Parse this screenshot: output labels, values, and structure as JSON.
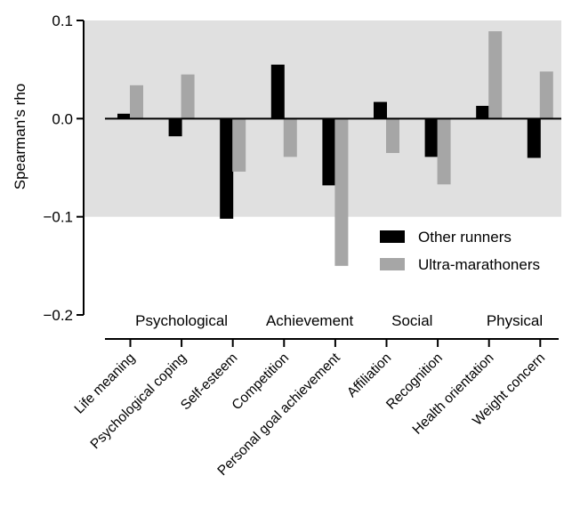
{
  "chart_data": {
    "type": "bar",
    "ylabel": "Spearman's rho",
    "ylim": [
      -0.2,
      0.1
    ],
    "yticks": [
      {
        "value": 0.1,
        "label": "0.1"
      },
      {
        "value": 0.0,
        "label": "0.0"
      },
      {
        "value": -0.1,
        "label": "−0.1"
      },
      {
        "value": -0.2,
        "label": "−0.2"
      }
    ],
    "shaded_band": [
      -0.1,
      0.1
    ],
    "categories": [
      "Life meaning",
      "Psychological coping",
      "Self-esteem",
      "Competition",
      "Personal goal achievement",
      "Affiliation",
      "Recognition",
      "Health orientation",
      "Weight concern"
    ],
    "groups": [
      {
        "label": "Psychological",
        "categories": [
          0,
          1,
          2
        ]
      },
      {
        "label": "Achievement",
        "categories": [
          3,
          4
        ]
      },
      {
        "label": "Social",
        "categories": [
          5,
          6
        ]
      },
      {
        "label": "Physical",
        "categories": [
          7,
          8
        ]
      }
    ],
    "series": [
      {
        "name": "Other runners",
        "color": "#000000",
        "values": [
          0.005,
          -0.018,
          -0.102,
          0.055,
          -0.068,
          0.017,
          -0.039,
          0.013,
          -0.04
        ]
      },
      {
        "name": "Ultra-marathoners",
        "color": "#a6a6a6",
        "values": [
          0.034,
          0.045,
          -0.054,
          -0.039,
          -0.15,
          -0.035,
          -0.067,
          0.089,
          0.048
        ]
      }
    ],
    "legend_position": "bottom-right",
    "grid": false
  }
}
